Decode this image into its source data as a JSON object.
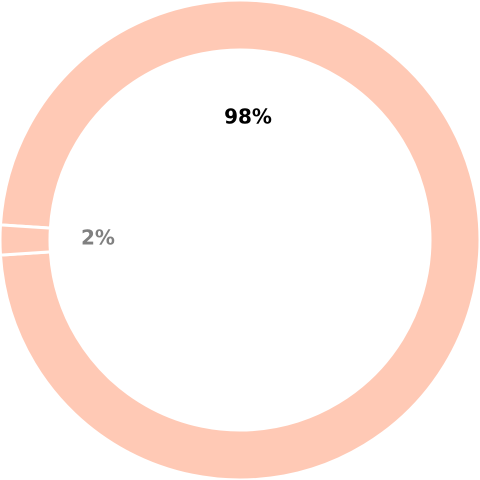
{
  "chart_data": {
    "type": "pie",
    "variant": "donut",
    "title": "",
    "legend": "none",
    "slices": [
      {
        "value": 98,
        "label": "98%",
        "color": "#FFC9B5",
        "label_color": "#000000"
      },
      {
        "value": 2,
        "label": "2%",
        "color": "#FFC9B5",
        "label_color": "#808080"
      }
    ]
  }
}
